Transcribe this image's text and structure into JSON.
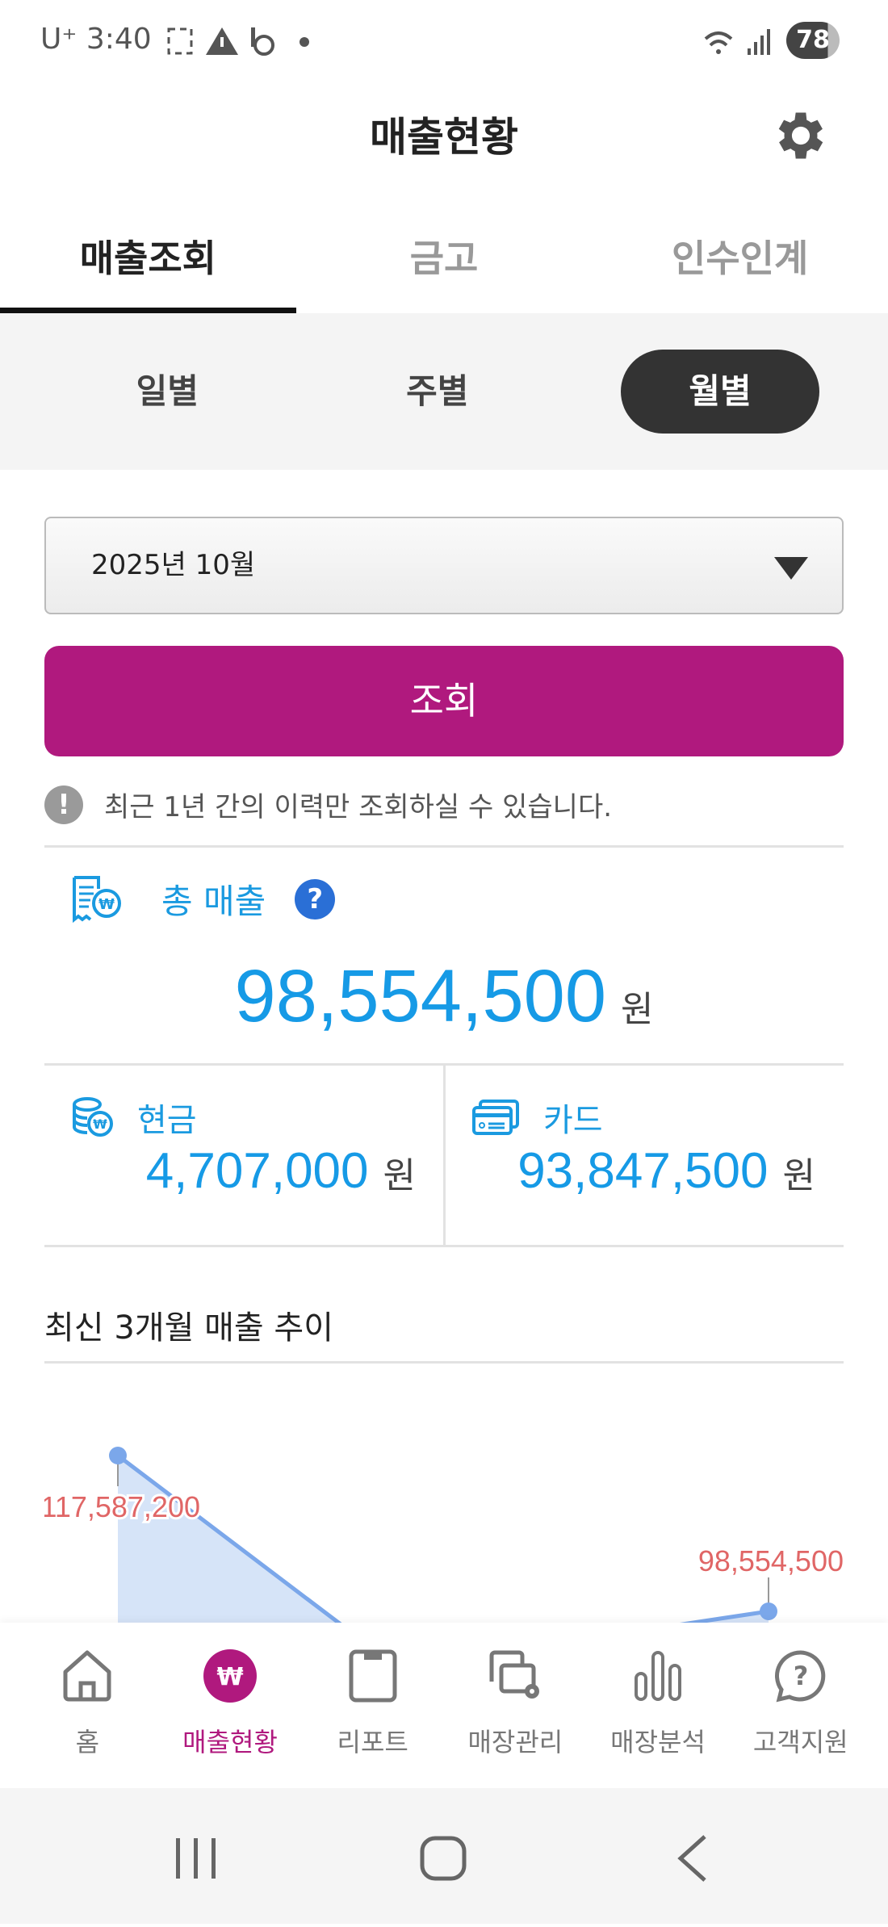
{
  "status_bar": {
    "carrier": "U⁺",
    "time": "3:40",
    "battery": "78",
    "icons": [
      "screenshot-icon",
      "warning-icon",
      "b-app-icon",
      "dot-icon",
      "wifi-icon",
      "signal-icon"
    ]
  },
  "header": {
    "title": "매출현황",
    "settings_icon": "gear-icon"
  },
  "tabs": [
    {
      "label": "매출조회",
      "active": true
    },
    {
      "label": "금고"
    },
    {
      "label": "인수인계"
    }
  ],
  "period": [
    {
      "label": "일별"
    },
    {
      "label": "주별"
    },
    {
      "label": "월별",
      "active": true
    }
  ],
  "month_select": {
    "value": "2025년 10월"
  },
  "search_button": "조회",
  "notice": "최근 1년 간의 이력만 조회하실 수 있습니다.",
  "total": {
    "label": "총 매출",
    "help": "?",
    "amount": "98,554,500",
    "unit": "원"
  },
  "cash": {
    "label": "현금",
    "amount": "4,707,000",
    "unit": "원"
  },
  "card": {
    "label": "카드",
    "amount": "93,847,500",
    "unit": "원"
  },
  "trend": {
    "title": "최신 3개월 매출 추이"
  },
  "chart_data": {
    "type": "area",
    "points": [
      {
        "value": 117587200,
        "label": "117,587,200"
      },
      {
        "value": null
      },
      {
        "value": 98554500,
        "label": "98,554,500"
      }
    ],
    "colors": {
      "line": "#7ba7ea",
      "fill": "#d6e4f8",
      "label": "#e06666"
    }
  },
  "bottom_nav": [
    {
      "label": "홈",
      "icon": "home-icon"
    },
    {
      "label": "매출현황",
      "icon": "won-icon",
      "active": true
    },
    {
      "label": "리포트",
      "icon": "report-icon"
    },
    {
      "label": "매장관리",
      "icon": "store-settings-icon"
    },
    {
      "label": "매장분석",
      "icon": "analytics-icon"
    },
    {
      "label": "고객지원",
      "icon": "support-icon"
    }
  ],
  "accent": "#b0197e"
}
